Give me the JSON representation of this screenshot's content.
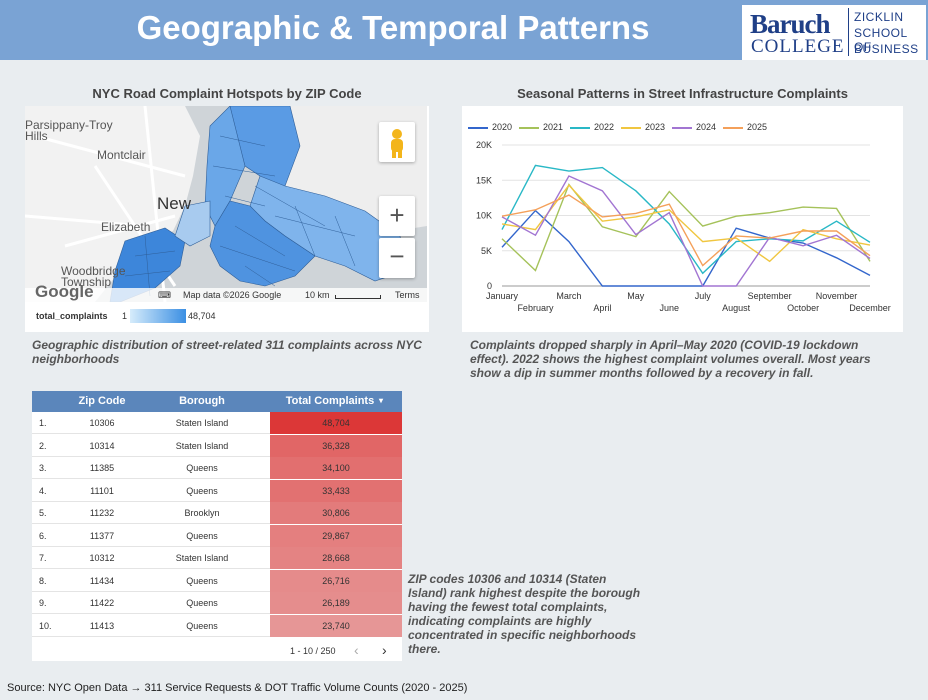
{
  "header": {
    "title": "Geographic & Temporal Patterns"
  },
  "logo": {
    "baruch": "Baruch",
    "college": "COLLEGE",
    "line1": "ZICKLIN",
    "line2": "SCHOOL OF",
    "line3": "BUSINESS"
  },
  "map": {
    "title": "NYC Road Complaint Hotspots by ZIP Code",
    "labels": {
      "parsippany": "Parsippany-Troy",
      "hills": "Hills",
      "montclair": "Montclair",
      "new": "New",
      "elizabeth": "Elizabeth",
      "woodbridge": "Woodbridge",
      "township": "Township"
    },
    "footer": {
      "google": "Google",
      "map_data": "Map data ©2026 Google",
      "scale": "10 km",
      "terms": "Terms"
    },
    "legend": {
      "label": "total_complaints",
      "min": "1",
      "max": "48,704"
    },
    "caption": "Geographic distribution of street-related 311 complaints across NYC neighborhoods",
    "colors": {
      "water": "#cfd4d8",
      "land": "#f2f2f2",
      "zip_light": "#a8cbef",
      "zip_dark": "#3d86da"
    }
  },
  "chart_data": {
    "type": "line",
    "title": "Seasonal Patterns in Street Infrastructure Complaints",
    "categories": [
      "January",
      "February",
      "March",
      "April",
      "May",
      "June",
      "July",
      "August",
      "September",
      "October",
      "November",
      "December"
    ],
    "yticks": [
      "0",
      "5K",
      "10K",
      "15K",
      "20K"
    ],
    "ylim": [
      0,
      20000
    ],
    "legend_position": "top",
    "grid": true,
    "series": [
      {
        "name": "2020",
        "color": "#3366cc",
        "values": [
          5500,
          10700,
          6300,
          0,
          0,
          0,
          0,
          8200,
          6800,
          6100,
          4000,
          1500
        ]
      },
      {
        "name": "2021",
        "color": "#a5c25a",
        "values": [
          6700,
          2200,
          14400,
          8400,
          7000,
          13400,
          8500,
          9900,
          10400,
          11200,
          11000,
          3500
        ]
      },
      {
        "name": "2022",
        "color": "#29b8c6",
        "values": [
          8000,
          17100,
          16300,
          16800,
          13500,
          8800,
          1800,
          6300,
          6700,
          6400,
          9200,
          6200
        ]
      },
      {
        "name": "2023",
        "color": "#f0c640",
        "values": [
          8800,
          8000,
          14300,
          9200,
          9800,
          10800,
          6300,
          6800,
          3500,
          8000,
          6700,
          5800
        ]
      },
      {
        "name": "2024",
        "color": "#a275d2",
        "values": [
          9800,
          7200,
          15600,
          13500,
          7300,
          10400,
          0,
          0,
          6900,
          5700,
          7200,
          3900
        ]
      },
      {
        "name": "2025",
        "color": "#f4a05a",
        "values": [
          9900,
          10800,
          12900,
          9800,
          10300,
          11600,
          2900,
          7100,
          6800,
          7800,
          7800,
          4300
        ]
      }
    ],
    "caption": "Complaints dropped sharply in April–May 2020 (COVID-19 lockdown effect). 2022 shows the highest complaint volumes overall. Most years show a dip in summer months followed by a recovery in fall."
  },
  "table": {
    "headers": {
      "zip": "Zip Code",
      "borough": "Borough",
      "total": "Total Complaints",
      "sort": "▾"
    },
    "rows": [
      {
        "num": "1.",
        "zip": "10306",
        "borough": "Staten Island",
        "total": "48,704",
        "value": 48704
      },
      {
        "num": "2.",
        "zip": "10314",
        "borough": "Staten Island",
        "total": "36,328",
        "value": 36328
      },
      {
        "num": "3.",
        "zip": "11385",
        "borough": "Queens",
        "total": "34,100",
        "value": 34100
      },
      {
        "num": "4.",
        "zip": "11101",
        "borough": "Queens",
        "total": "33,433",
        "value": 33433
      },
      {
        "num": "5.",
        "zip": "11232",
        "borough": "Brooklyn",
        "total": "30,806",
        "value": 30806
      },
      {
        "num": "6.",
        "zip": "11377",
        "borough": "Queens",
        "total": "29,867",
        "value": 29867
      },
      {
        "num": "7.",
        "zip": "10312",
        "borough": "Staten Island",
        "total": "28,668",
        "value": 28668
      },
      {
        "num": "8.",
        "zip": "11434",
        "borough": "Queens",
        "total": "26,716",
        "value": 26716
      },
      {
        "num": "9.",
        "zip": "11422",
        "borough": "Queens",
        "total": "26,189",
        "value": 26189
      },
      {
        "num": "10.",
        "zip": "11413",
        "borough": "Queens",
        "total": "23,740",
        "value": 23740
      }
    ],
    "pager": "1 - 10 / 250",
    "caption": "ZIP codes 10306 and 10314 (Staten Island) rank highest despite the borough having the fewest total complaints, indicating complaints are highly concentrated in specific neighborhoods there."
  },
  "source": "Source: NYC Open Data → 311 Service Requests & DOT Traffic Volume Counts (2020 - 2025)"
}
